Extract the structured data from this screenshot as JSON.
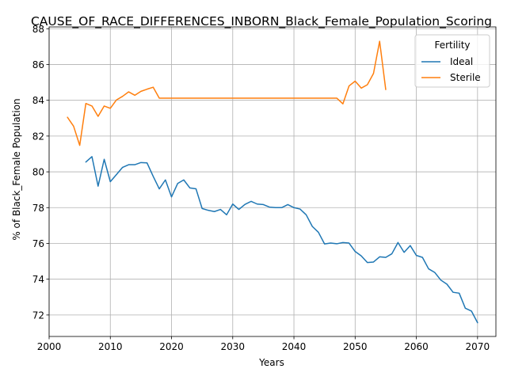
{
  "chart_data": {
    "type": "line",
    "title": "CAUSE_OF_RACE_DIFFERENCES_INBORN_Black_Female_Population_Scoring",
    "xlabel": "Years",
    "ylabel": "% of Black_Female Population",
    "xlim": [
      2000,
      2073
    ],
    "ylim": [
      70.8,
      88.1
    ],
    "xticks": [
      2000,
      2010,
      2020,
      2030,
      2040,
      2050,
      2060,
      2070
    ],
    "yticks": [
      72,
      74,
      76,
      78,
      80,
      82,
      84,
      86,
      88
    ],
    "grid": true,
    "legend": {
      "title": "Fertility",
      "position": "top-right"
    },
    "series": [
      {
        "name": "Ideal",
        "color": "#1f77b4",
        "x": [
          2006,
          2007,
          2008,
          2009,
          2010,
          2011,
          2012,
          2013,
          2014,
          2015,
          2016,
          2017,
          2018,
          2019,
          2020,
          2021,
          2022,
          2023,
          2024,
          2025,
          2026,
          2027,
          2028,
          2029,
          2030,
          2031,
          2032,
          2033,
          2034,
          2035,
          2036,
          2037,
          2038,
          2039,
          2040,
          2041,
          2042,
          2043,
          2044,
          2045,
          2046,
          2047,
          2048,
          2049,
          2050,
          2051,
          2052,
          2053,
          2054,
          2055,
          2056,
          2057,
          2058,
          2059,
          2060,
          2061,
          2062,
          2063,
          2064,
          2065,
          2066,
          2067,
          2068,
          2069,
          2070
        ],
        "y": [
          80.55,
          80.85,
          79.2,
          80.7,
          79.45,
          79.85,
          80.25,
          80.4,
          80.4,
          80.52,
          80.5,
          79.75,
          79.05,
          79.55,
          78.6,
          79.35,
          79.55,
          79.1,
          79.05,
          77.95,
          77.85,
          77.78,
          77.9,
          77.6,
          78.2,
          77.9,
          78.18,
          78.35,
          78.2,
          78.17,
          78.03,
          78.0,
          78.0,
          78.17,
          78.0,
          77.92,
          77.6,
          76.95,
          76.62,
          75.97,
          76.02,
          75.98,
          76.05,
          76.02,
          75.55,
          75.3,
          74.93,
          74.96,
          75.25,
          75.22,
          75.42,
          76.05,
          75.5,
          75.88,
          75.33,
          75.22,
          74.58,
          74.38,
          73.95,
          73.72,
          73.27,
          73.22,
          72.38,
          72.22,
          71.57
        ]
      },
      {
        "name": "Sterile",
        "color": "#ff7f0e",
        "x": [
          2003,
          2004,
          2005,
          2006,
          2007,
          2008,
          2009,
          2010,
          2011,
          2012,
          2013,
          2014,
          2015,
          2016,
          2017,
          2018,
          2019,
          2020,
          2021,
          2022,
          2023,
          2024,
          2025,
          2026,
          2027,
          2028,
          2029,
          2030,
          2031,
          2032,
          2033,
          2034,
          2035,
          2036,
          2037,
          2038,
          2039,
          2040,
          2041,
          2042,
          2043,
          2044,
          2045,
          2046,
          2047,
          2048,
          2049,
          2050,
          2051,
          2052,
          2053,
          2054,
          2055
        ],
        "y": [
          83.05,
          82.55,
          81.48,
          83.82,
          83.68,
          83.1,
          83.68,
          83.55,
          84.02,
          84.22,
          84.47,
          84.28,
          84.5,
          84.62,
          84.73,
          84.12,
          84.12,
          84.12,
          84.12,
          84.12,
          84.12,
          84.12,
          84.12,
          84.12,
          84.12,
          84.12,
          84.12,
          84.12,
          84.12,
          84.12,
          84.12,
          84.12,
          84.12,
          84.12,
          84.12,
          84.12,
          84.12,
          84.12,
          84.12,
          84.12,
          84.12,
          84.12,
          84.12,
          84.12,
          84.12,
          83.8,
          84.8,
          85.07,
          84.68,
          84.87,
          85.5,
          87.3,
          84.6
        ]
      }
    ]
  }
}
